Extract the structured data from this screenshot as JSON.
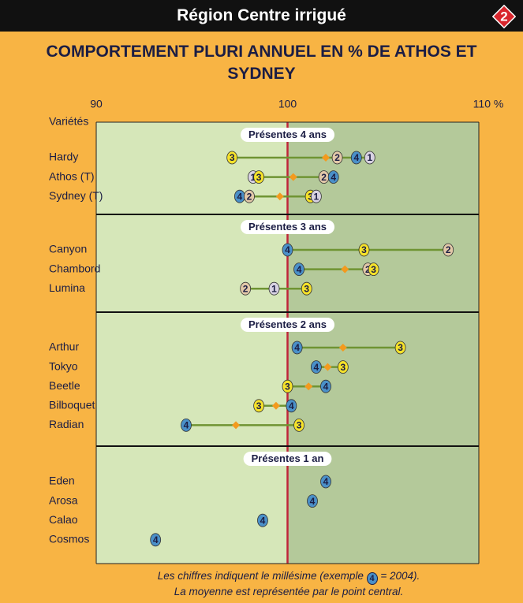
{
  "chart_data": {
    "type": "dot_range",
    "header": "Région Centre irrigué",
    "badge": "2",
    "title": "COMPORTEMENT PLURI ANNUEL EN % DE ATHOS ET SYDNEY",
    "y_label": "Variétés",
    "xlim": [
      90,
      110
    ],
    "xticks": [
      90,
      100,
      {
        "value": 110,
        "label": "110 %"
      }
    ],
    "year_colors": {
      "1": "#d8d2e2",
      "2": "#e2c8a8",
      "3": "#f5e22a",
      "4": "#4a90c8"
    },
    "mean_color": "#f39a1e",
    "range_color": "#6f9433",
    "groups": [
      {
        "label": "Présentes 4 ans",
        "varieties": [
          {
            "name": "Hardy",
            "points": [
              {
                "label": "3",
                "value": 97.1
              },
              {
                "label": "2",
                "value": 102.6
              },
              {
                "label": "4",
                "value": 103.6
              },
              {
                "label": "1",
                "value": 104.3
              }
            ],
            "mean": 102.0
          },
          {
            "name": "Athos (T)",
            "points": [
              {
                "label": "1",
                "value": 98.2
              },
              {
                "label": "3",
                "value": 98.5
              },
              {
                "label": "2",
                "value": 101.9
              },
              {
                "label": "4",
                "value": 102.4
              }
            ],
            "mean": 100.3
          },
          {
            "name": "Sydney (T)",
            "points": [
              {
                "label": "4",
                "value": 97.5
              },
              {
                "label": "2",
                "value": 98.0
              },
              {
                "label": "3",
                "value": 101.2
              },
              {
                "label": "1",
                "value": 101.5
              }
            ],
            "mean": 99.6
          }
        ]
      },
      {
        "label": "Présentes 3 ans",
        "varieties": [
          {
            "name": "Canyon",
            "points": [
              {
                "label": "4",
                "value": 100.0
              },
              {
                "label": "3",
                "value": 104.0
              },
              {
                "label": "2",
                "value": 108.4
              }
            ],
            "mean": 104.0
          },
          {
            "name": "Chambord",
            "points": [
              {
                "label": "4",
                "value": 100.6
              },
              {
                "label": "2",
                "value": 104.2
              },
              {
                "label": "3",
                "value": 104.5
              }
            ],
            "mean": 103.0
          },
          {
            "name": "Lumina",
            "points": [
              {
                "label": "2",
                "value": 97.8
              },
              {
                "label": "1",
                "value": 99.3
              },
              {
                "label": "3",
                "value": 101.0
              }
            ],
            "mean": 99.3
          }
        ]
      },
      {
        "label": "Présentes 2 ans",
        "varieties": [
          {
            "name": "Arthur",
            "points": [
              {
                "label": "4",
                "value": 100.5
              },
              {
                "label": "3",
                "value": 105.9
              }
            ],
            "mean": 102.9
          },
          {
            "name": "Tokyo",
            "points": [
              {
                "label": "4",
                "value": 101.5
              },
              {
                "label": "3",
                "value": 102.9
              }
            ],
            "mean": 102.1
          },
          {
            "name": "Beetle",
            "points": [
              {
                "label": "3",
                "value": 100.0
              },
              {
                "label": "4",
                "value": 102.0
              }
            ],
            "mean": 101.1
          },
          {
            "name": "Bilboquet",
            "points": [
              {
                "label": "3",
                "value": 98.5
              },
              {
                "label": "4",
                "value": 100.2
              }
            ],
            "mean": 99.4
          },
          {
            "name": "Radian",
            "points": [
              {
                "label": "4",
                "value": 94.7
              },
              {
                "label": "3",
                "value": 100.6
              }
            ],
            "mean": 97.3
          }
        ]
      },
      {
        "label": "Présentes 1 an",
        "varieties": [
          {
            "name": "Eden",
            "points": [
              {
                "label": "4",
                "value": 102.0
              }
            ]
          },
          {
            "name": "Arosa",
            "points": [
              {
                "label": "4",
                "value": 101.3
              }
            ]
          },
          {
            "name": "Calao",
            "points": [
              {
                "label": "4",
                "value": 98.7
              }
            ]
          },
          {
            "name": "Cosmos",
            "points": [
              {
                "label": "4",
                "value": 93.1
              }
            ]
          }
        ]
      }
    ],
    "footnote": {
      "line1": [
        "Les chiffres indiquent le millésime (exemple ",
        "4",
        " = 2004)."
      ],
      "line2": "La moyenne est représentée par le point central."
    }
  }
}
